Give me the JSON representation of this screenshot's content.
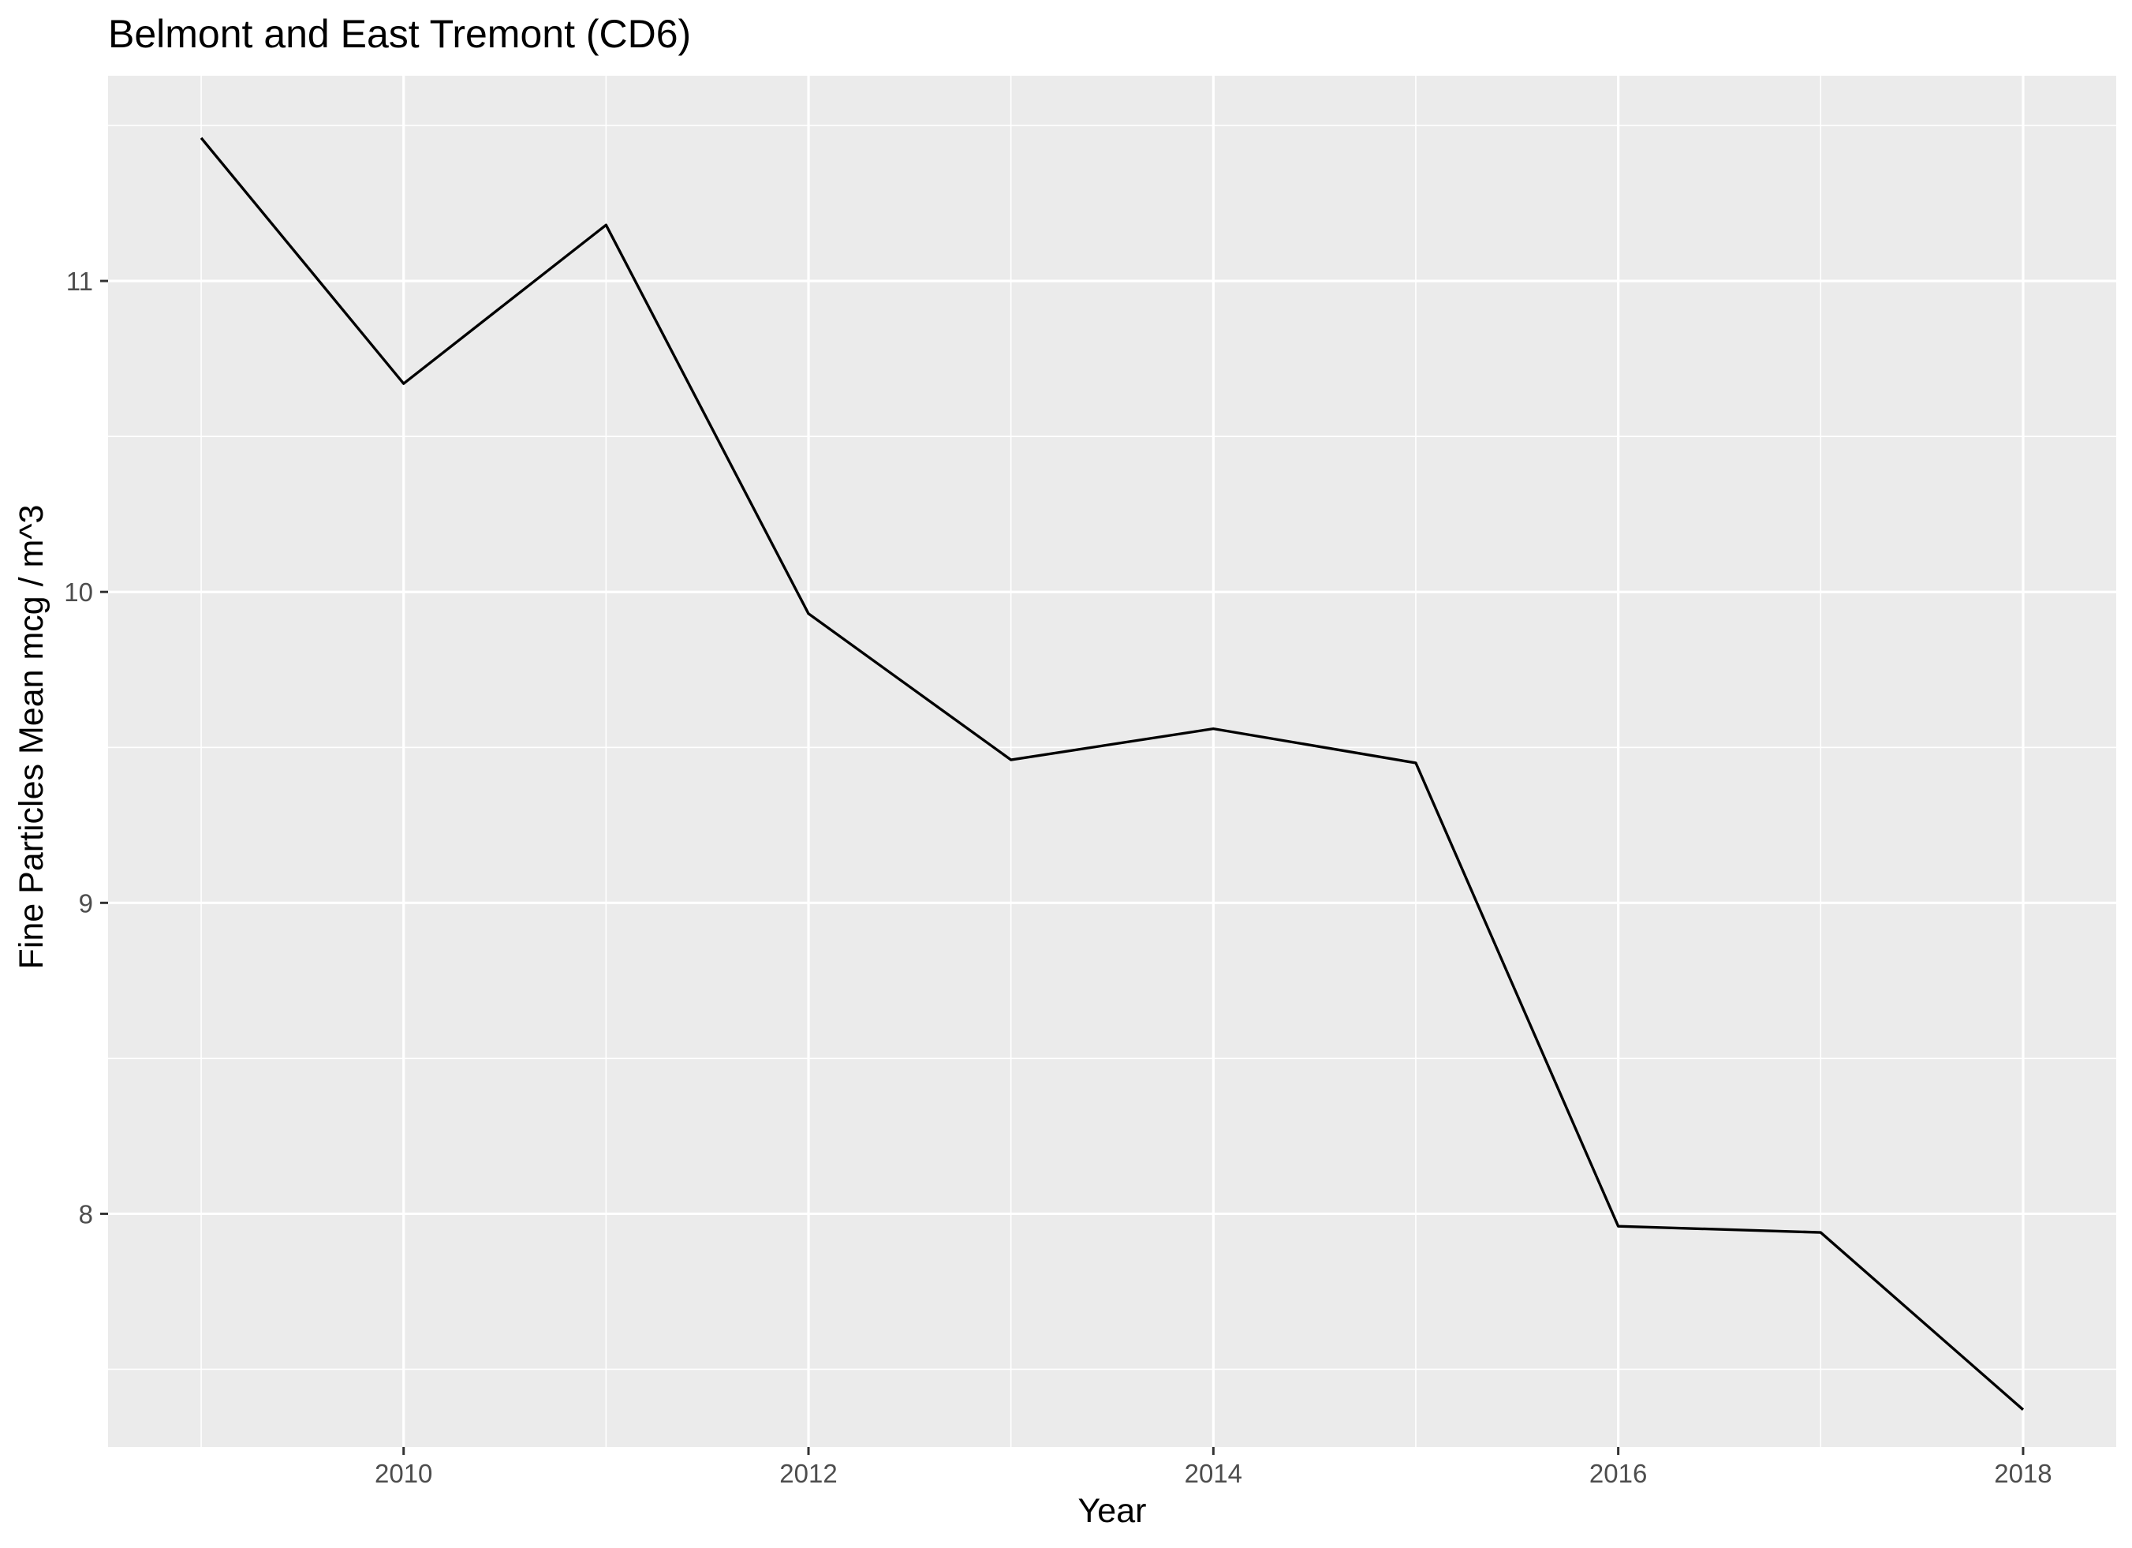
{
  "chart_data": {
    "type": "line",
    "title": "Belmont and East Tremont (CD6)",
    "xlabel": "Year",
    "ylabel": "Fine Particles Mean mcg / m^3",
    "x": [
      2009,
      2010,
      2011,
      2012,
      2013,
      2014,
      2015,
      2016,
      2017,
      2018
    ],
    "series": [
      {
        "values": [
          11.46,
          10.67,
          11.18,
          9.93,
          9.46,
          9.56,
          9.45,
          7.96,
          7.94,
          7.37
        ]
      }
    ],
    "xlim": [
      2008.54,
      2018.46
    ],
    "ylim": [
      7.25,
      11.66
    ],
    "x_ticks": [
      2010,
      2012,
      2014,
      2016,
      2018
    ],
    "x_tick_labels": [
      "2010",
      "2012",
      "2014",
      "2016",
      "2018"
    ],
    "y_ticks": [
      8,
      9,
      10,
      11
    ],
    "y_tick_labels": [
      "8",
      "9",
      "10",
      "11"
    ],
    "grid": true,
    "legend": "none",
    "colors": {
      "panel_background": "#EBEBEB",
      "grid_line": "#FFFFFF",
      "line": "#000000",
      "tick_label": "#4D4D4D",
      "tick_mark": "#333333"
    }
  }
}
